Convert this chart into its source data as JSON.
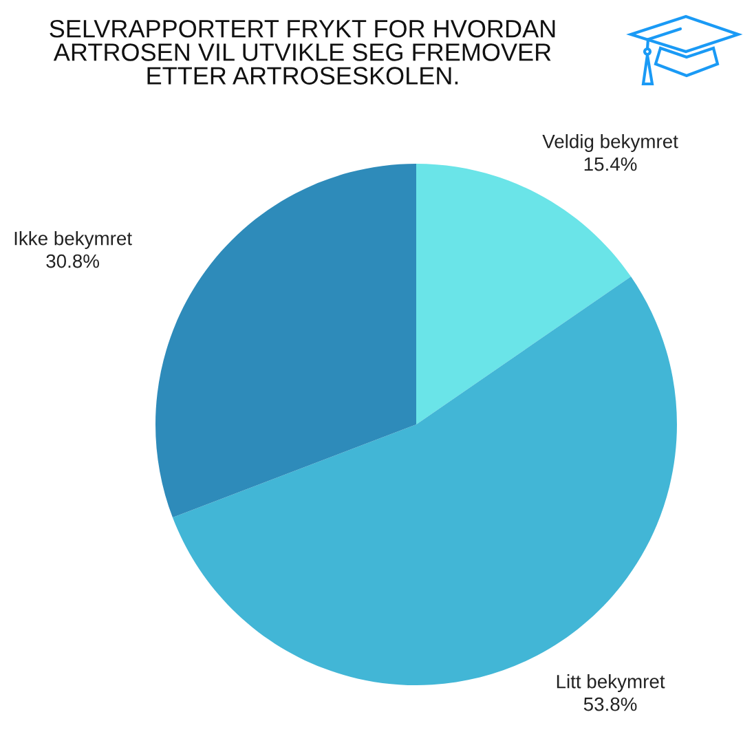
{
  "chart_data": {
    "type": "pie",
    "title": "SELVRAPPORTERT FRYKT FOR HVORDAN\nARTROSEN VIL UTVIKLE SEG FREMOVER\nETTER ARTROSESKOLEN.",
    "categories": [
      "Veldig bekymret",
      "Litt bekymret",
      "Ikke bekymret"
    ],
    "values": [
      15.4,
      53.8,
      30.8
    ],
    "colors": [
      "#6ae4e8",
      "#42b6d6",
      "#2e8bba"
    ],
    "value_labels": [
      "15.4%",
      "53.8%",
      "30.8%"
    ]
  }
}
